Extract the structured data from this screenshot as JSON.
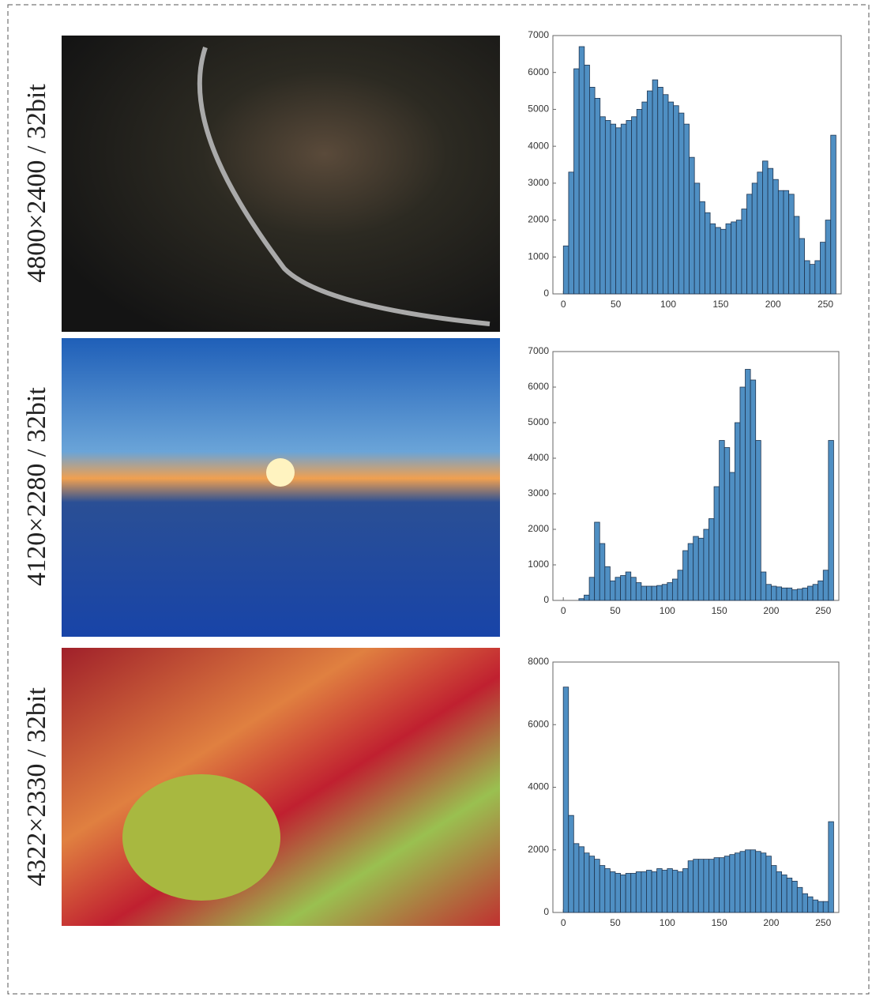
{
  "image_labels": [
    "4800×2400 / 32bit",
    "4120×2280 / 32bit",
    "4322×2330 / 32bit"
  ],
  "chart_data": [
    {
      "type": "histogram",
      "color": "#4f8fc3",
      "bins": [
        0,
        5,
        10,
        15,
        20,
        25,
        30,
        35,
        40,
        45,
        50,
        55,
        60,
        65,
        70,
        75,
        80,
        85,
        90,
        95,
        100,
        105,
        110,
        115,
        120,
        125,
        130,
        135,
        140,
        145,
        150,
        155,
        160,
        165,
        170,
        175,
        180,
        185,
        190,
        195,
        200,
        205,
        210,
        215,
        220,
        225,
        230,
        235,
        240,
        245,
        250,
        255,
        260
      ],
      "values": [
        1300,
        3300,
        6100,
        6700,
        6200,
        5600,
        5300,
        4800,
        4700,
        4600,
        4500,
        4600,
        4700,
        4800,
        5000,
        5200,
        5500,
        5800,
        5600,
        5400,
        5200,
        5100,
        4900,
        4600,
        3700,
        3000,
        2500,
        2200,
        1900,
        1800,
        1750,
        1900,
        1950,
        2000,
        2300,
        2700,
        3000,
        3300,
        3600,
        3400,
        3100,
        2800,
        2800,
        2700,
        2100,
        1500,
        900,
        800,
        900,
        1400,
        2000,
        4300
      ],
      "xlim": [
        -10,
        265
      ],
      "xticks": [
        0,
        50,
        100,
        150,
        200,
        250
      ],
      "ylim": [
        0,
        7000
      ],
      "yticks": [
        0,
        1000,
        2000,
        3000,
        4000,
        5000,
        6000,
        7000
      ]
    },
    {
      "type": "histogram",
      "color": "#4f8fc3",
      "bins": [
        0,
        5,
        10,
        15,
        20,
        25,
        30,
        35,
        40,
        45,
        50,
        55,
        60,
        65,
        70,
        75,
        80,
        85,
        90,
        95,
        100,
        105,
        110,
        115,
        120,
        125,
        130,
        135,
        140,
        145,
        150,
        155,
        160,
        165,
        170,
        175,
        180,
        185,
        190,
        195,
        200,
        205,
        210,
        215,
        220,
        225,
        230,
        235,
        240,
        245,
        250,
        255,
        260
      ],
      "values": [
        0,
        0,
        0,
        50,
        150,
        650,
        2200,
        1600,
        950,
        550,
        650,
        700,
        800,
        650,
        500,
        400,
        400,
        400,
        420,
        450,
        500,
        600,
        850,
        1400,
        1600,
        1800,
        1750,
        2000,
        2300,
        3200,
        4500,
        4300,
        3600,
        5000,
        6000,
        6500,
        6200,
        4500,
        800,
        450,
        400,
        380,
        350,
        350,
        300,
        320,
        350,
        400,
        450,
        550,
        850,
        4500
      ],
      "xlim": [
        -10,
        265
      ],
      "xticks": [
        0,
        50,
        100,
        150,
        200,
        250
      ],
      "ylim": [
        0,
        7000
      ],
      "yticks": [
        0,
        1000,
        2000,
        3000,
        4000,
        5000,
        6000,
        7000
      ]
    },
    {
      "type": "histogram",
      "color": "#4f8fc3",
      "bins": [
        0,
        5,
        10,
        15,
        20,
        25,
        30,
        35,
        40,
        45,
        50,
        55,
        60,
        65,
        70,
        75,
        80,
        85,
        90,
        95,
        100,
        105,
        110,
        115,
        120,
        125,
        130,
        135,
        140,
        145,
        150,
        155,
        160,
        165,
        170,
        175,
        180,
        185,
        190,
        195,
        200,
        205,
        210,
        215,
        220,
        225,
        230,
        235,
        240,
        245,
        250,
        255,
        260
      ],
      "values": [
        7200,
        3100,
        2200,
        2100,
        1900,
        1800,
        1700,
        1500,
        1400,
        1300,
        1250,
        1200,
        1250,
        1250,
        1300,
        1300,
        1350,
        1300,
        1400,
        1350,
        1400,
        1350,
        1300,
        1400,
        1650,
        1700,
        1700,
        1700,
        1700,
        1750,
        1750,
        1800,
        1850,
        1900,
        1950,
        2000,
        2000,
        1950,
        1900,
        1800,
        1500,
        1300,
        1200,
        1100,
        1000,
        800,
        600,
        500,
        400,
        350,
        350,
        2900
      ],
      "xlim": [
        -10,
        265
      ],
      "xticks": [
        0,
        50,
        100,
        150,
        200,
        250
      ],
      "ylim": [
        0,
        8000
      ],
      "yticks": [
        0,
        2000,
        4000,
        6000,
        8000
      ]
    }
  ]
}
